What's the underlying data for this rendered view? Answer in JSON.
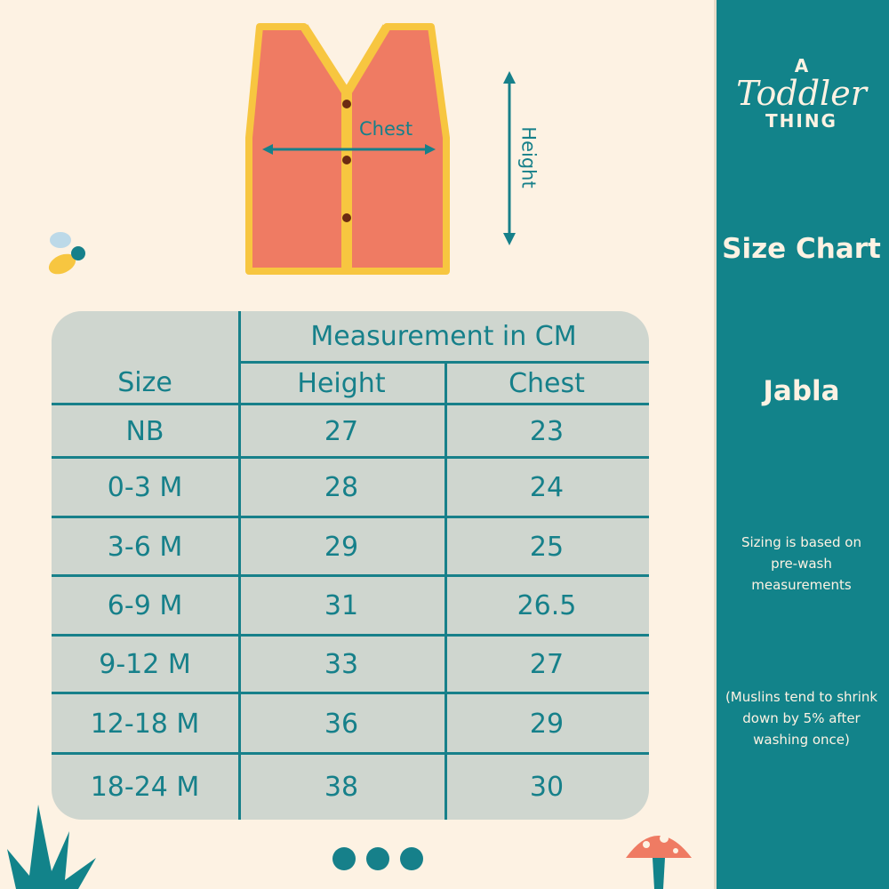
{
  "brand": {
    "logo_line1": "A",
    "logo_line2": "Toddler",
    "logo_line3": "THING"
  },
  "panel": {
    "title": "Size Chart",
    "product": "Jabla",
    "note1": "Sizing is based on pre-wash measurements",
    "note2": "(Muslins tend to shrink down by 5% after washing once)"
  },
  "diagram": {
    "chest_label": "Chest",
    "height_label": "Height"
  },
  "table": {
    "size_header": "Size",
    "group_header": "Measurement in CM",
    "height_header": "Height",
    "chest_header": "Chest",
    "rows": [
      {
        "size": "NB",
        "height": "27",
        "chest": "23"
      },
      {
        "size": "0-3 M",
        "height": "28",
        "chest": "24"
      },
      {
        "size": "3-6 M",
        "height": "29",
        "chest": "25"
      },
      {
        "size": "6-9 M",
        "height": "31",
        "chest": "26.5"
      },
      {
        "size": "9-12 M",
        "height": "33",
        "chest": "27"
      },
      {
        "size": "12-18 M",
        "height": "36",
        "chest": "29"
      },
      {
        "size": "18-24 M",
        "height": "38",
        "chest": "30"
      }
    ]
  },
  "colors": {
    "teal": "#12838a",
    "background": "#fdf2e3",
    "table": "#cfd6cf",
    "vest": "#ef7b63",
    "trim": "#f7c640"
  }
}
